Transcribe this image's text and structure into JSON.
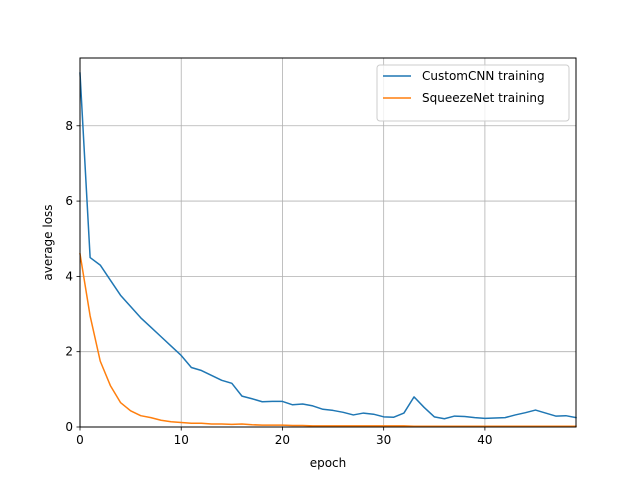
{
  "chart_data": {
    "type": "line",
    "title": "",
    "xlabel": "epoch",
    "ylabel": "average loss",
    "xlim": [
      0,
      49
    ],
    "ylim": [
      0,
      9.8
    ],
    "xticks": [
      0,
      10,
      20,
      30,
      40
    ],
    "yticks": [
      0,
      2,
      4,
      6,
      8
    ],
    "grid": true,
    "legend_position": "top-right",
    "x": [
      0,
      1,
      2,
      3,
      4,
      5,
      6,
      7,
      8,
      9,
      10,
      11,
      12,
      13,
      14,
      15,
      16,
      17,
      18,
      19,
      20,
      21,
      22,
      23,
      24,
      25,
      26,
      27,
      28,
      29,
      30,
      31,
      32,
      33,
      34,
      35,
      36,
      37,
      38,
      39,
      40,
      41,
      42,
      43,
      44,
      45,
      46,
      47,
      48,
      49
    ],
    "series": [
      {
        "name": "CustomCNN training",
        "color": "#1f77b4",
        "values": [
          9.4,
          4.5,
          4.3,
          3.9,
          3.5,
          3.2,
          2.9,
          2.65,
          2.4,
          2.15,
          1.9,
          1.58,
          1.5,
          1.37,
          1.24,
          1.16,
          0.82,
          0.75,
          0.67,
          0.68,
          0.68,
          0.59,
          0.61,
          0.56,
          0.47,
          0.44,
          0.39,
          0.32,
          0.37,
          0.34,
          0.27,
          0.26,
          0.37,
          0.8,
          0.52,
          0.27,
          0.22,
          0.29,
          0.28,
          0.25,
          0.23,
          0.24,
          0.25,
          0.32,
          0.38,
          0.45,
          0.37,
          0.29,
          0.3,
          0.25
        ]
      },
      {
        "name": "SqueezeNet training",
        "color": "#ff7f0e",
        "values": [
          4.6,
          2.95,
          1.75,
          1.1,
          0.65,
          0.43,
          0.3,
          0.25,
          0.18,
          0.14,
          0.12,
          0.1,
          0.1,
          0.08,
          0.08,
          0.07,
          0.08,
          0.06,
          0.05,
          0.05,
          0.05,
          0.04,
          0.04,
          0.03,
          0.03,
          0.03,
          0.03,
          0.03,
          0.03,
          0.03,
          0.03,
          0.03,
          0.03,
          0.02,
          0.02,
          0.02,
          0.02,
          0.02,
          0.02,
          0.02,
          0.02,
          0.02,
          0.02,
          0.02,
          0.02,
          0.02,
          0.02,
          0.02,
          0.02,
          0.02
        ]
      }
    ]
  }
}
